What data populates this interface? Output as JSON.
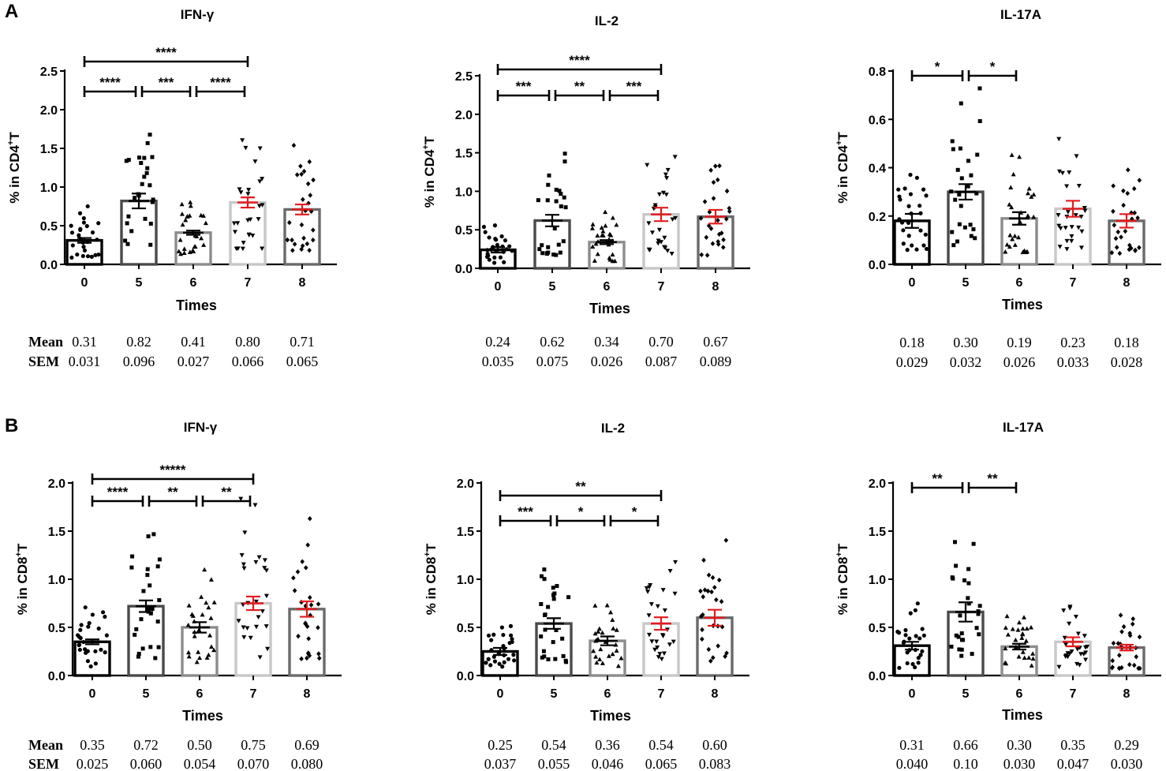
{
  "figure": {
    "panel_labels": [
      "A",
      "B"
    ],
    "xlabel": "Times",
    "stat_labels": {
      "mean": "Mean",
      "sem": "SEM"
    },
    "colors": {
      "bar_0": "#000000",
      "bar_5": "#4a4a4a",
      "bar_6": "#8c8c8c",
      "bar_7": "#c8c8c8",
      "bar_8": "#6a6a6a",
      "error_red": "#e41a1c"
    }
  },
  "chart_data": [
    {
      "panel": "A",
      "type": "bar",
      "title": "IFN-γ",
      "ylabel_main": "% in CD4",
      "ylabel_sup": "+",
      "ylabel_tail": "T",
      "categories": [
        "0",
        "5",
        "6",
        "7",
        "8"
      ],
      "ylim": [
        0,
        2.5
      ],
      "yticks": [
        "0.0",
        "0.5",
        "1.0",
        "1.5",
        "2.0",
        "2.5"
      ],
      "means": [
        0.31,
        0.82,
        0.41,
        0.8,
        0.71
      ],
      "sems": [
        0.031,
        0.096,
        0.027,
        0.066,
        0.065
      ],
      "mean_labels": [
        "0.31",
        "0.82",
        "0.41",
        "0.80",
        "0.71"
      ],
      "sem_labels": [
        "0.031",
        "0.096",
        "0.027",
        "0.066",
        "0.065"
      ],
      "markers": [
        "circle",
        "square",
        "triangle-up",
        "triangle-down",
        "diamond"
      ],
      "comparisons": [
        {
          "from": 0,
          "to": 3,
          "level": 1,
          "label": "****"
        },
        {
          "from": 0,
          "to": 1,
          "level": 0,
          "label": "****"
        },
        {
          "from": 1,
          "to": 2,
          "level": 0,
          "label": "***"
        },
        {
          "from": 2,
          "to": 3,
          "level": 0,
          "label": "****"
        }
      ]
    },
    {
      "panel": "A",
      "type": "bar",
      "title": "IL-2",
      "ylabel_main": "% in CD4",
      "ylabel_sup": "+",
      "ylabel_tail": "T",
      "categories": [
        "0",
        "5",
        "6",
        "7",
        "8"
      ],
      "ylim": [
        0,
        2.5
      ],
      "yticks": [
        "0.0",
        "0.5",
        "1.0",
        "1.5",
        "2.0",
        "2.5"
      ],
      "means": [
        0.24,
        0.62,
        0.34,
        0.7,
        0.67
      ],
      "sems": [
        0.035,
        0.075,
        0.026,
        0.087,
        0.089
      ],
      "mean_labels": [
        "0.24",
        "0.62",
        "0.34",
        "0.70",
        "0.67"
      ],
      "sem_labels": [
        "0.035",
        "0.075",
        "0.026",
        "0.087",
        "0.089"
      ],
      "markers": [
        "circle",
        "square",
        "triangle-up",
        "triangle-down",
        "diamond"
      ],
      "comparisons": [
        {
          "from": 0,
          "to": 3,
          "level": 1,
          "label": "****"
        },
        {
          "from": 0,
          "to": 1,
          "level": 0,
          "label": "***"
        },
        {
          "from": 1,
          "to": 2,
          "level": 0,
          "label": "**"
        },
        {
          "from": 2,
          "to": 3,
          "level": 0,
          "label": "***"
        }
      ]
    },
    {
      "panel": "A",
      "type": "bar",
      "title": "IL-17A",
      "ylabel_main": "% in CD4",
      "ylabel_sup": "+",
      "ylabel_tail": "T",
      "categories": [
        "0",
        "5",
        "6",
        "7",
        "8"
      ],
      "ylim": [
        0,
        0.8
      ],
      "yticks": [
        "0.0",
        "0.2",
        "0.4",
        "0.6",
        "0.8"
      ],
      "means": [
        0.18,
        0.3,
        0.19,
        0.23,
        0.18
      ],
      "sems": [
        0.029,
        0.032,
        0.026,
        0.033,
        0.028
      ],
      "mean_labels": [
        "0.18",
        "0.30",
        "0.19",
        "0.23",
        "0.18"
      ],
      "sem_labels": [
        "0.029",
        "0.032",
        "0.026",
        "0.033",
        "0.028"
      ],
      "markers": [
        "circle",
        "square",
        "triangle-up",
        "triangle-down",
        "diamond"
      ],
      "comparisons": [
        {
          "from": 0,
          "to": 1,
          "level": 0,
          "label": "*"
        },
        {
          "from": 1,
          "to": 2,
          "level": 0,
          "label": "*"
        }
      ]
    },
    {
      "panel": "B",
      "type": "bar",
      "title": "IFN-γ",
      "ylabel_main": "% in CD8",
      "ylabel_sup": "+",
      "ylabel_tail": "T",
      "categories": [
        "0",
        "5",
        "6",
        "7",
        "8"
      ],
      "ylim": [
        0,
        2.0
      ],
      "yticks": [
        "0.0",
        "0.5",
        "1.0",
        "1.5",
        "2.0"
      ],
      "means": [
        0.35,
        0.72,
        0.5,
        0.75,
        0.69
      ],
      "sems": [
        0.025,
        0.06,
        0.054,
        0.07,
        0.08
      ],
      "mean_labels": [
        "0.35",
        "0.72",
        "0.50",
        "0.75",
        "0.69"
      ],
      "sem_labels": [
        "0.025",
        "0.060",
        "0.054",
        "0.070",
        "0.080"
      ],
      "markers": [
        "circle",
        "square",
        "triangle-up",
        "triangle-down",
        "diamond"
      ],
      "comparisons": [
        {
          "from": 0,
          "to": 3,
          "level": 1,
          "label": "*****"
        },
        {
          "from": 0,
          "to": 1,
          "level": 0,
          "label": "****"
        },
        {
          "from": 1,
          "to": 2,
          "level": 0,
          "label": "**"
        },
        {
          "from": 2,
          "to": 3,
          "level": 0,
          "label": "**"
        }
      ]
    },
    {
      "panel": "B",
      "type": "bar",
      "title": "IL-2",
      "ylabel_main": "% in CD8",
      "ylabel_sup": "+",
      "ylabel_tail": "T",
      "categories": [
        "0",
        "5",
        "6",
        "7",
        "8"
      ],
      "ylim": [
        0,
        2.0
      ],
      "yticks": [
        "0.0",
        "0.5",
        "1.0",
        "1.5",
        "2.0"
      ],
      "means": [
        0.25,
        0.54,
        0.36,
        0.54,
        0.6
      ],
      "sems": [
        0.037,
        0.055,
        0.046,
        0.065,
        0.083
      ],
      "mean_labels": [
        "0.25",
        "0.54",
        "0.36",
        "0.54",
        "0.60"
      ],
      "sem_labels": [
        "0.037",
        "0.055",
        "0.046",
        "0.065",
        "0.083"
      ],
      "markers": [
        "circle",
        "square",
        "triangle-up",
        "triangle-down",
        "diamond"
      ],
      "comparisons": [
        {
          "from": 0,
          "to": 3,
          "level": 1,
          "label": "**"
        },
        {
          "from": 0,
          "to": 1,
          "level": 0,
          "label": "***"
        },
        {
          "from": 1,
          "to": 2,
          "level": 0,
          "label": "*"
        },
        {
          "from": 2,
          "to": 3,
          "level": 0,
          "label": "*"
        }
      ]
    },
    {
      "panel": "B",
      "type": "bar",
      "title": "IL-17A",
      "ylabel_main": "% in CD8",
      "ylabel_sup": "+",
      "ylabel_tail": "T",
      "categories": [
        "0",
        "5",
        "6",
        "7",
        "8"
      ],
      "ylim": [
        0,
        2.0
      ],
      "yticks": [
        "0.0",
        "0.5",
        "1.0",
        "1.5",
        "2.0"
      ],
      "means": [
        0.31,
        0.66,
        0.3,
        0.35,
        0.29
      ],
      "sems": [
        0.04,
        0.1,
        0.03,
        0.047,
        0.03
      ],
      "mean_labels": [
        "0.31",
        "0.66",
        "0.30",
        "0.35",
        "0.29"
      ],
      "sem_labels": [
        "0.040",
        "0.10",
        "0.030",
        "0.047",
        "0.030"
      ],
      "markers": [
        "circle",
        "square",
        "triangle-up",
        "triangle-down",
        "diamond"
      ],
      "comparisons": [
        {
          "from": 0,
          "to": 1,
          "level": 0,
          "label": "**"
        },
        {
          "from": 1,
          "to": 2,
          "level": 0,
          "label": "**"
        }
      ]
    }
  ]
}
